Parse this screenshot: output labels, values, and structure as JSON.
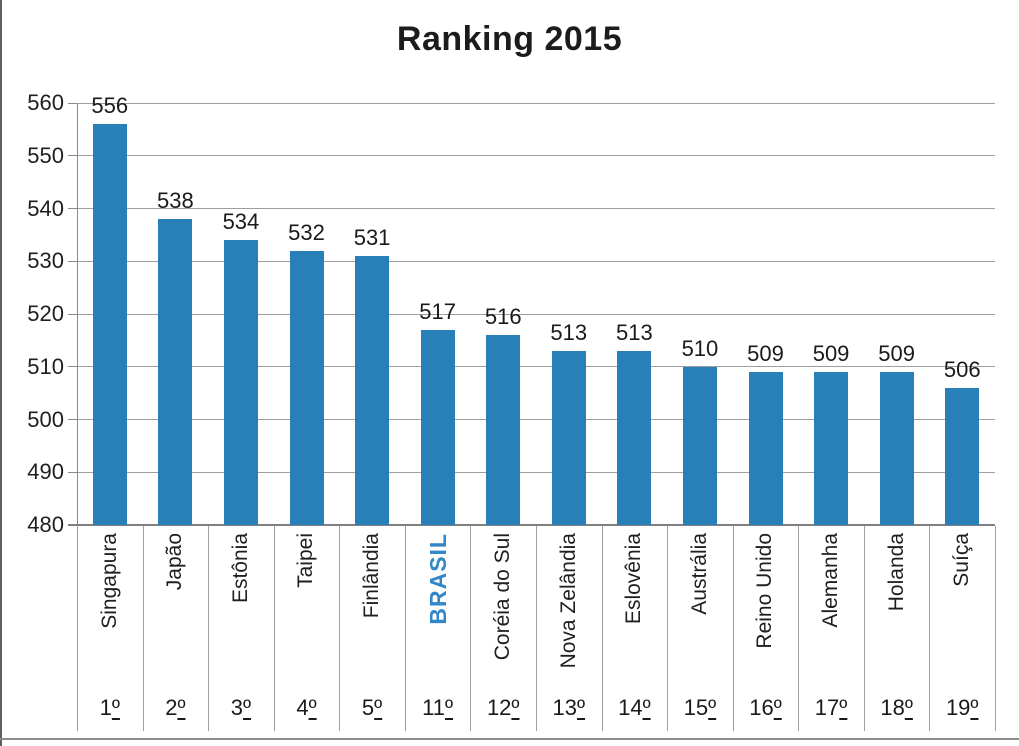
{
  "title": "Ranking 2015",
  "chart_data": {
    "type": "bar",
    "title": "Ranking 2015",
    "categories": [
      "Singapura",
      "Japão",
      "Estônia",
      "Taipei",
      "Finlândia",
      "BRASIL",
      "Coréia do Sul",
      "Nova Zelândia",
      "Eslovênia",
      "Austrália",
      "Reino Unido",
      "Alemanha",
      "Holanda",
      "Suíça"
    ],
    "values": [
      556,
      538,
      534,
      532,
      531,
      517,
      516,
      513,
      513,
      510,
      509,
      509,
      509,
      506
    ],
    "ranks": [
      "1º",
      "2º",
      "3º",
      "4º",
      "5º",
      "11º",
      "12º",
      "13º",
      "14º",
      "15º",
      "16º",
      "17º",
      "18º",
      "19º"
    ],
    "highlight_index": 5,
    "highlight_category": "BRASIL",
    "data_labels": true,
    "xlabel": "",
    "ylabel": "",
    "ylim": [
      480,
      560
    ],
    "y_tick_step": 10,
    "y_ticks": [
      480,
      490,
      500,
      510,
      520,
      530,
      540,
      550,
      560
    ],
    "grid": "horizontal",
    "legend": "none",
    "bar_color": "#2980B9",
    "highlight_label_color": "#3287C8"
  }
}
